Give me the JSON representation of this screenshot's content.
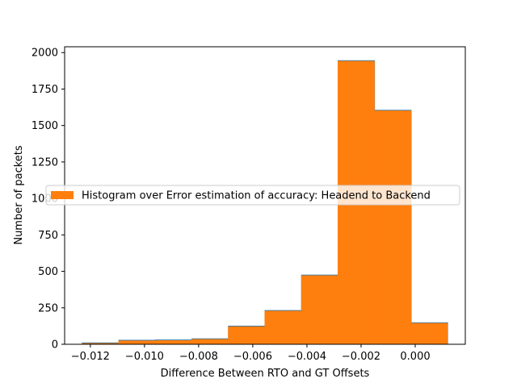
{
  "chart_data": {
    "type": "bar",
    "subtype": "histogram",
    "bins": [
      {
        "x0": -0.0123,
        "x1": -0.01095,
        "value": 10
      },
      {
        "x0": -0.01095,
        "x1": -0.0096,
        "value": 28
      },
      {
        "x0": -0.0096,
        "x1": -0.00825,
        "value": 30
      },
      {
        "x0": -0.00825,
        "x1": -0.0069,
        "value": 38
      },
      {
        "x0": -0.0069,
        "x1": -0.00555,
        "value": 125
      },
      {
        "x0": -0.00555,
        "x1": -0.0042,
        "value": 232
      },
      {
        "x0": -0.0042,
        "x1": -0.00285,
        "value": 475
      },
      {
        "x0": -0.00285,
        "x1": -0.0015,
        "value": 1945
      },
      {
        "x0": -0.0015,
        "x1": -0.00015,
        "value": 1605
      },
      {
        "x0": -0.00015,
        "x1": 0.0012,
        "value": 148
      }
    ],
    "xlabel": "Difference Between RTO and GT Offsets",
    "ylabel": "Number of packets",
    "xlim": [
      -0.01295,
      0.00185
    ],
    "ylim": [
      0,
      2040
    ],
    "xticks": [
      -0.012,
      -0.01,
      -0.008,
      -0.006,
      -0.004,
      -0.002,
      0.0
    ],
    "xtick_labels": [
      "−0.012",
      "−0.010",
      "−0.008",
      "−0.006",
      "−0.004",
      "−0.002",
      "0.000"
    ],
    "yticks": [
      0,
      250,
      500,
      750,
      1000,
      1250,
      1500,
      1750,
      2000
    ],
    "ytick_labels": [
      "0",
      "250",
      "500",
      "750",
      "1000",
      "1250",
      "1500",
      "1750",
      "2000"
    ],
    "legend": {
      "label": "Histogram over Error estimation of accuracy: Headend to Backend",
      "placement": "center"
    },
    "colors": {
      "bar_fill": "#ff7f0e",
      "bar_edge": "#1f77b4",
      "axis": "#000000"
    },
    "grid": false
  }
}
